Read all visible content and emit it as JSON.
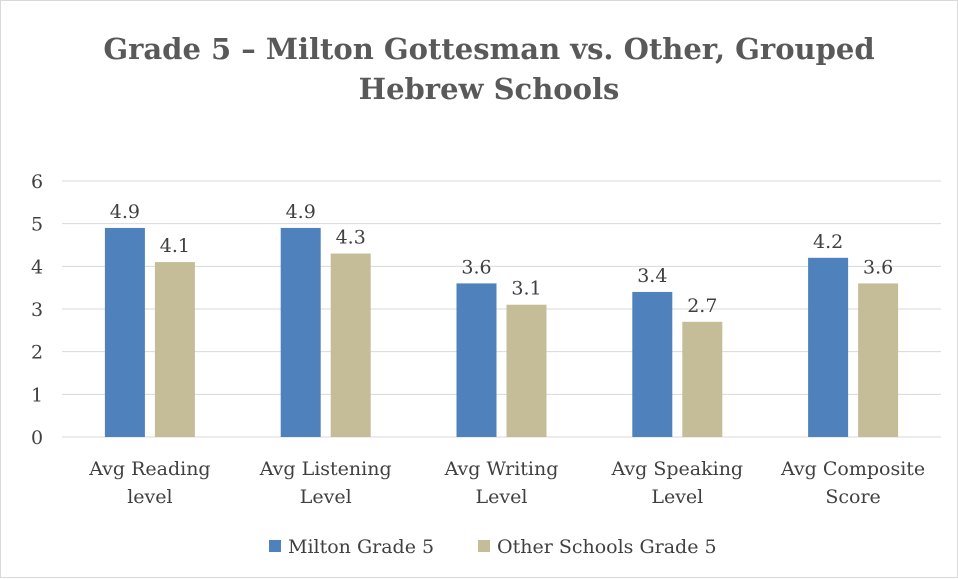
{
  "chart_data": {
    "type": "bar",
    "title": "Grade 5 – Milton Gottesman vs. Other, Grouped Hebrew Schools",
    "title_lines": [
      "Grade 5 – Milton Gottesman vs. Other, Grouped",
      "Hebrew Schools"
    ],
    "categories": [
      "Avg Reading level",
      "Avg Listening Level",
      "Avg Writing Level",
      "Avg Speaking Level",
      "Avg Composite Score"
    ],
    "category_lines": [
      [
        "Avg Reading",
        "level"
      ],
      [
        "Avg Listening",
        "Level"
      ],
      [
        "Avg Writing",
        "Level"
      ],
      [
        "Avg Speaking",
        "Level"
      ],
      [
        "Avg Composite",
        "Score"
      ]
    ],
    "series": [
      {
        "name": "Milton Grade 5",
        "color": "#4f81bd",
        "values": [
          4.9,
          4.9,
          3.6,
          3.4,
          4.2
        ]
      },
      {
        "name": "Other Schools Grade 5",
        "color": "#c4bd97",
        "values": [
          4.1,
          4.3,
          3.1,
          2.7,
          3.6
        ]
      }
    ],
    "ylim": [
      0,
      6
    ],
    "yticks": [
      0,
      1,
      2,
      3,
      4,
      5,
      6
    ],
    "grid": true,
    "legend_position": "bottom",
    "data_labels": true
  }
}
